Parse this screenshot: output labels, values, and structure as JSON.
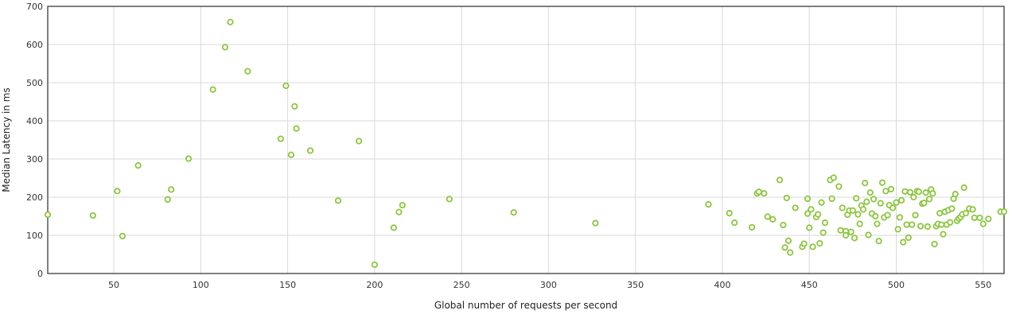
{
  "chart_data": {
    "type": "scatter",
    "title": "",
    "xlabel": "Global number of requests per second",
    "ylabel": "Median Latency in ms",
    "xlim": [
      12,
      562
    ],
    "ylim": [
      0,
      700
    ],
    "x_ticks": [
      50,
      100,
      150,
      200,
      250,
      300,
      350,
      400,
      450,
      500,
      550
    ],
    "y_ticks": [
      0,
      100,
      200,
      300,
      400,
      500,
      600,
      700
    ],
    "x_tick_labels": [
      "50",
      "100",
      "150",
      "200",
      "250",
      "300",
      "350",
      "400",
      "450",
      "500",
      "550"
    ],
    "y_tick_labels": [
      "0",
      "100",
      "200",
      "300",
      "400",
      "500",
      "600",
      "700"
    ],
    "grid": true,
    "marker_color": "#8CC63F",
    "series": [
      {
        "points": [
          [
            12,
            154
          ],
          [
            38,
            152
          ],
          [
            52,
            216
          ],
          [
            55,
            98
          ],
          [
            64,
            283
          ],
          [
            81,
            194
          ],
          [
            83,
            220
          ],
          [
            93,
            301
          ],
          [
            107,
            482
          ],
          [
            114,
            593
          ],
          [
            117,
            659
          ],
          [
            127,
            530
          ],
          [
            146,
            353
          ],
          [
            149,
            492
          ],
          [
            152,
            311
          ],
          [
            154,
            438
          ],
          [
            155,
            380
          ],
          [
            163,
            322
          ],
          [
            179,
            191
          ],
          [
            191,
            347
          ],
          [
            200,
            23
          ],
          [
            211,
            120
          ],
          [
            214,
            161
          ],
          [
            216,
            179
          ],
          [
            243,
            195
          ],
          [
            280,
            160
          ],
          [
            327,
            132
          ],
          [
            392,
            181
          ],
          [
            404,
            158
          ],
          [
            407,
            133
          ],
          [
            417,
            121
          ],
          [
            420,
            210
          ],
          [
            421,
            214
          ],
          [
            424,
            210
          ],
          [
            426,
            149
          ],
          [
            429,
            142
          ],
          [
            433,
            245
          ],
          [
            435,
            127
          ],
          [
            436,
            68
          ],
          [
            437,
            198
          ],
          [
            438,
            86
          ],
          [
            439,
            55
          ],
          [
            442,
            172
          ],
          [
            446,
            70
          ],
          [
            447,
            78
          ],
          [
            449,
            157
          ],
          [
            449,
            196
          ],
          [
            450,
            120
          ],
          [
            451,
            168
          ],
          [
            452,
            70
          ],
          [
            454,
            148
          ],
          [
            455,
            155
          ],
          [
            456,
            79
          ],
          [
            457,
            186
          ],
          [
            458,
            107
          ],
          [
            459,
            133
          ],
          [
            462,
            245
          ],
          [
            463,
            196
          ],
          [
            464,
            251
          ],
          [
            467,
            228
          ],
          [
            468,
            113
          ],
          [
            469,
            172
          ],
          [
            471,
            111
          ],
          [
            471,
            100
          ],
          [
            472,
            154
          ],
          [
            473,
            165
          ],
          [
            474,
            109
          ],
          [
            475,
            165
          ],
          [
            476,
            93
          ],
          [
            477,
            197
          ],
          [
            478,
            155
          ],
          [
            479,
            130
          ],
          [
            480,
            178
          ],
          [
            481,
            168
          ],
          [
            482,
            237
          ],
          [
            483,
            188
          ],
          [
            484,
            101
          ],
          [
            485,
            212
          ],
          [
            486,
            157
          ],
          [
            487,
            195
          ],
          [
            488,
            150
          ],
          [
            489,
            130
          ],
          [
            490,
            85
          ],
          [
            491,
            184
          ],
          [
            492,
            238
          ],
          [
            493,
            147
          ],
          [
            494,
            216
          ],
          [
            495,
            153
          ],
          [
            496,
            179
          ],
          [
            497,
            221
          ],
          [
            498,
            172
          ],
          [
            500,
            186
          ],
          [
            501,
            116
          ],
          [
            502,
            147
          ],
          [
            503,
            192
          ],
          [
            504,
            82
          ],
          [
            505,
            215
          ],
          [
            506,
            128
          ],
          [
            507,
            94
          ],
          [
            508,
            213
          ],
          [
            509,
            128
          ],
          [
            510,
            200
          ],
          [
            511,
            153
          ],
          [
            512,
            216
          ],
          [
            513,
            214
          ],
          [
            514,
            124
          ],
          [
            515,
            183
          ],
          [
            516,
            185
          ],
          [
            517,
            212
          ],
          [
            518,
            123
          ],
          [
            519,
            195
          ],
          [
            520,
            220
          ],
          [
            521,
            210
          ],
          [
            522,
            77
          ],
          [
            523,
            124
          ],
          [
            524,
            130
          ],
          [
            525,
            158
          ],
          [
            526,
            128
          ],
          [
            527,
            103
          ],
          [
            528,
            162
          ],
          [
            529,
            128
          ],
          [
            530,
            166
          ],
          [
            531,
            134
          ],
          [
            532,
            170
          ],
          [
            533,
            196
          ],
          [
            534,
            208
          ],
          [
            535,
            138
          ],
          [
            536,
            144
          ],
          [
            537,
            148
          ],
          [
            538,
            155
          ],
          [
            539,
            225
          ],
          [
            540,
            158
          ],
          [
            542,
            170
          ],
          [
            544,
            168
          ],
          [
            545,
            146
          ],
          [
            548,
            146
          ],
          [
            550,
            130
          ],
          [
            553,
            143
          ],
          [
            560,
            162
          ],
          [
            562,
            162
          ]
        ]
      }
    ]
  }
}
